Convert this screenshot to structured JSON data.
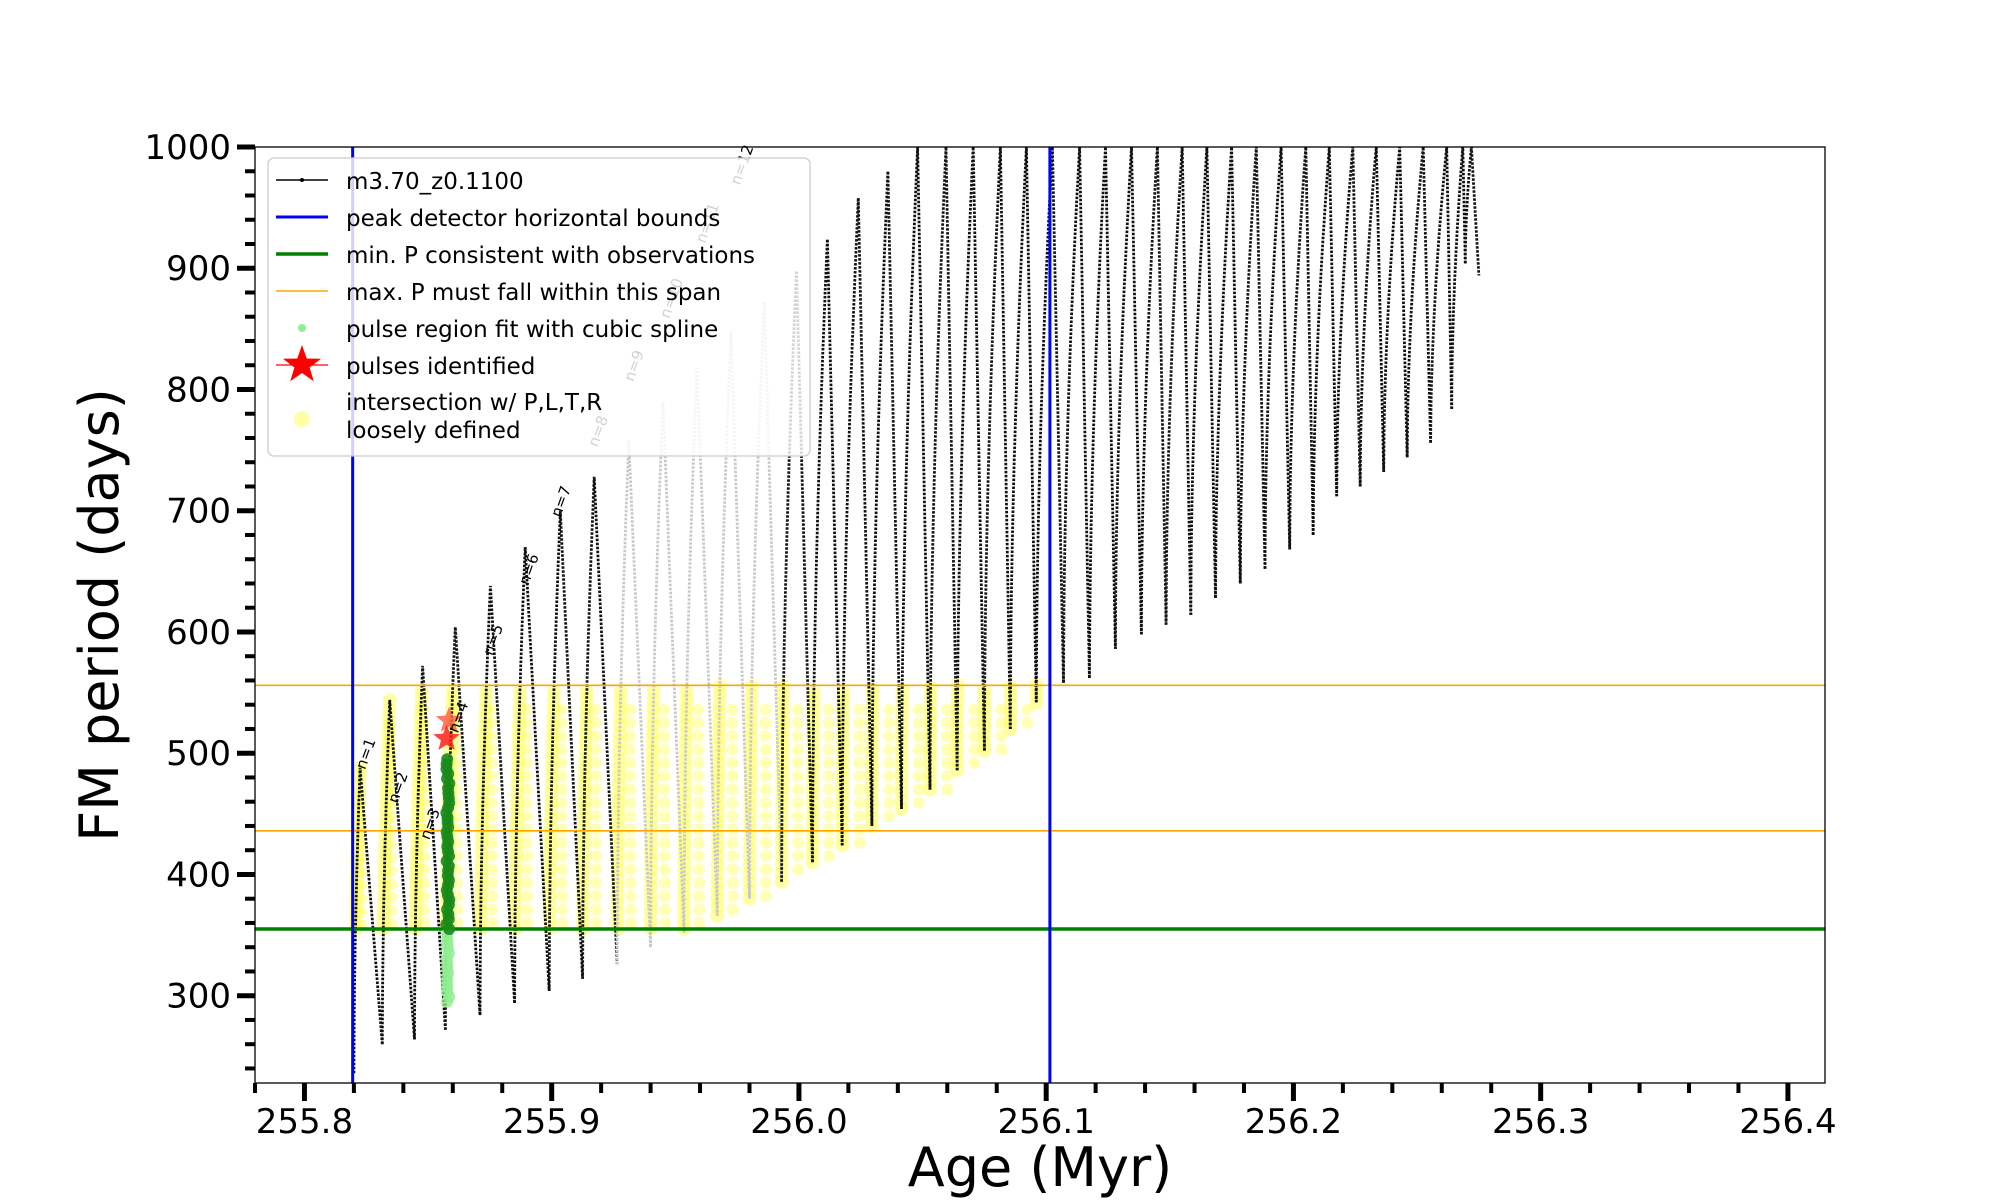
{
  "chart_data": {
    "type": "line",
    "xlabel": "Age (Myr)",
    "ylabel": "FM period (days)",
    "xlim": [
      255.78,
      256.415
    ],
    "ylim": [
      228,
      1000
    ],
    "xticks": [
      "255.8",
      "255.9",
      "256.0",
      "256.1",
      "256.2",
      "256.3",
      "256.4"
    ],
    "xtick_values": [
      255.8,
      255.9,
      256.0,
      256.1,
      256.2,
      256.3,
      256.4
    ],
    "yticks": [
      "300",
      "400",
      "500",
      "600",
      "700",
      "800",
      "900",
      "1000"
    ],
    "ytick_values": [
      300,
      400,
      500,
      600,
      700,
      800,
      900,
      1000
    ],
    "grid": false,
    "legend_position": "top-left",
    "legend": {
      "model": "m3.70_z0.1100",
      "peak_bounds": "peak detector horizontal bounds",
      "min_p": "min. P consistent with observations",
      "max_p": "max. P must fall within this span",
      "spline": "pulse region fit with cubic spline",
      "pulses": "pulses identified",
      "intersection_line1": "intersection w/ P,L,T,R",
      "intersection_line2": "loosely defined"
    },
    "vertical_lines": [
      255.8195,
      256.1015
    ],
    "min_period_line": 355,
    "max_period_span": [
      436,
      556
    ],
    "pulses_identified": [
      {
        "age": 255.8585,
        "period": 527
      },
      {
        "age": 255.8575,
        "period": 512
      }
    ],
    "pulse_labels": [
      "n=1",
      "n=2",
      "n=3",
      "n=4",
      "n=5",
      "n=6",
      "n=7",
      "n=8",
      "n=9",
      "n=10",
      "n=11",
      "n=12"
    ],
    "pulse_label_positions": [
      {
        "age": 255.8245,
        "period": 486
      },
      {
        "age": 255.8375,
        "period": 458
      },
      {
        "age": 255.8505,
        "period": 428
      },
      {
        "age": 255.862,
        "period": 516
      },
      {
        "age": 255.876,
        "period": 580
      },
      {
        "age": 255.8905,
        "period": 638
      },
      {
        "age": 255.9035,
        "period": 694
      },
      {
        "age": 255.9185,
        "period": 752
      },
      {
        "age": 255.933,
        "period": 806
      },
      {
        "age": 255.9475,
        "period": 858
      },
      {
        "age": 255.962,
        "period": 920
      },
      {
        "age": 255.976,
        "period": 968
      }
    ],
    "series": [
      {
        "name": "m3.70_z0.1100",
        "color": "#000000",
        "description_values": "thermal pulse cycles: [start_age, base_period, peak_age, peak_period]",
        "cycles": [
          [
            255.82,
            236,
            255.8225,
            488
          ],
          [
            255.8315,
            260,
            255.8345,
            544
          ],
          [
            255.8445,
            264,
            255.8478,
            572
          ],
          [
            255.857,
            272,
            255.861,
            604
          ],
          [
            255.871,
            284,
            255.8752,
            638
          ],
          [
            255.885,
            294,
            255.8893,
            670
          ],
          [
            255.899,
            304,
            255.9035,
            700
          ],
          [
            255.9125,
            314,
            255.9172,
            728
          ],
          [
            255.9265,
            326,
            255.9312,
            758
          ],
          [
            255.94,
            340,
            255.945,
            790
          ],
          [
            255.9535,
            352,
            255.9588,
            818
          ],
          [
            255.967,
            366,
            255.9725,
            848
          ],
          [
            255.98,
            380,
            255.986,
            872
          ],
          [
            255.993,
            394,
            255.999,
            898
          ],
          [
            256.0055,
            410,
            256.0115,
            924
          ],
          [
            256.0175,
            424,
            256.024,
            958
          ],
          [
            256.0295,
            440,
            256.036,
            980
          ],
          [
            256.0415,
            454,
            256.048,
            1000
          ],
          [
            256.053,
            470,
            256.0595,
            1000
          ],
          [
            256.064,
            486,
            256.0705,
            1000
          ],
          [
            256.075,
            502,
            256.0815,
            1000
          ],
          [
            256.0855,
            520,
            256.092,
            1000
          ],
          [
            256.096,
            542,
            256.1025,
            1000
          ],
          [
            256.107,
            558,
            256.1135,
            1000
          ],
          [
            256.1175,
            562,
            256.124,
            1000
          ],
          [
            256.128,
            586,
            256.1345,
            1000
          ],
          [
            256.1385,
            598,
            256.145,
            1000
          ],
          [
            256.1485,
            606,
            256.155,
            1000
          ],
          [
            256.1585,
            614,
            256.165,
            1000
          ],
          [
            256.1685,
            628,
            256.175,
            1000
          ],
          [
            256.1785,
            640,
            256.185,
            1000
          ],
          [
            256.1885,
            652,
            256.195,
            1000
          ],
          [
            256.1985,
            668,
            256.205,
            1000
          ],
          [
            256.208,
            680,
            256.2145,
            1000
          ],
          [
            256.2175,
            712,
            256.224,
            1000
          ],
          [
            256.227,
            720,
            256.2335,
            1000
          ],
          [
            256.2365,
            732,
            256.243,
            1000
          ],
          [
            256.246,
            744,
            256.2525,
            1000
          ],
          [
            256.2555,
            756,
            256.262,
            1000
          ],
          [
            256.264,
            784,
            256.2685,
            1000
          ],
          [
            256.2695,
            904,
            256.272,
            1000
          ]
        ]
      },
      {
        "name": "pulse region fit with cubic spline",
        "color": "#90ee90",
        "range": [
          255.858,
          295,
          495
        ]
      }
    ]
  }
}
